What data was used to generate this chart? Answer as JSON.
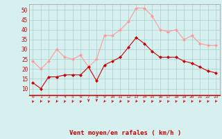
{
  "hours": [
    0,
    1,
    2,
    3,
    4,
    5,
    6,
    7,
    8,
    9,
    10,
    11,
    12,
    13,
    14,
    15,
    16,
    17,
    18,
    19,
    20,
    21,
    22,
    23
  ],
  "vent_moyen": [
    13,
    10,
    16,
    16,
    17,
    17,
    17,
    21,
    14,
    22,
    24,
    26,
    31,
    36,
    33,
    29,
    26,
    26,
    26,
    24,
    23,
    21,
    19,
    18
  ],
  "rafales": [
    24,
    20,
    24,
    30,
    26,
    25,
    27,
    21,
    25,
    37,
    37,
    40,
    44,
    51,
    51,
    47,
    40,
    39,
    40,
    35,
    37,
    33,
    32,
    32
  ],
  "line_color_mean": "#cc0000",
  "line_color_gust": "#ff9999",
  "marker": "D",
  "marker_size": 2.5,
  "bg_color": "#d6f0f0",
  "grid_color": "#aacccc",
  "xlabel": "Vent moyen/en rafales ( km/h )",
  "xlabel_color": "#cc0000",
  "tick_color": "#cc0000",
  "ylim": [
    7,
    53
  ],
  "yticks": [
    10,
    15,
    20,
    25,
    30,
    35,
    40,
    45,
    50
  ],
  "xlim": [
    -0.5,
    23.5
  ],
  "arrow_color": "#cc0000"
}
